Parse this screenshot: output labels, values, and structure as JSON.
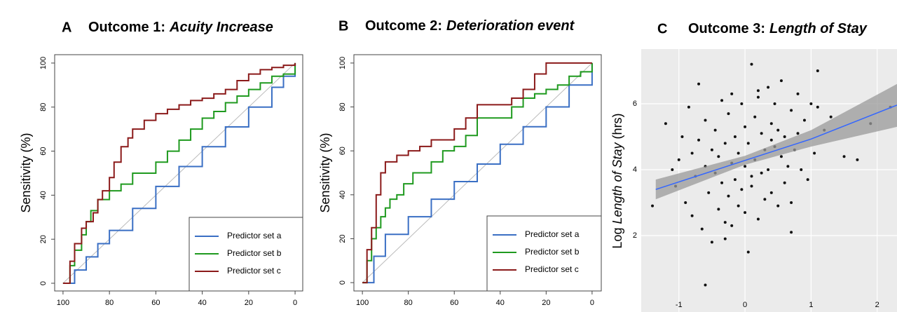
{
  "chart_data": [
    {
      "type": "line",
      "panel": "A",
      "title": "Outcome 1:",
      "title_italic": "Acuity Increase",
      "ylabel": "Sensitivity (%)",
      "xlim": [
        103.6,
        -3.3
      ],
      "ylim": [
        -3.5,
        103.8
      ],
      "xticks": [
        100,
        80,
        60,
        40,
        20,
        0
      ],
      "yticks": [
        0,
        20,
        40,
        60,
        80,
        100
      ],
      "step": true,
      "legend": "lower right",
      "series": [
        {
          "name": "Predictor set a",
          "color": "#3a6fc4",
          "x": [
            100,
            95,
            90,
            85,
            80,
            70,
            60,
            50,
            40,
            30,
            20,
            10,
            5,
            0
          ],
          "values": [
            0,
            6,
            12,
            18,
            24,
            34,
            44,
            53,
            62,
            71,
            80,
            89,
            94,
            100
          ]
        },
        {
          "name": "Predictor set b",
          "color": "#1f9a1f",
          "x": [
            100,
            97,
            95,
            92,
            90,
            88,
            85,
            80,
            75,
            70,
            65,
            60,
            55,
            50,
            45,
            40,
            35,
            30,
            25,
            20,
            15,
            10,
            5,
            0
          ],
          "values": [
            0,
            8,
            15,
            22,
            28,
            33,
            38,
            42,
            45,
            50,
            50,
            55,
            60,
            65,
            70,
            75,
            78,
            82,
            85,
            88,
            91,
            94,
            95,
            100
          ]
        },
        {
          "name": "Predictor set c",
          "color": "#8b1a1a",
          "x": [
            100,
            97,
            95,
            92,
            90,
            87,
            85,
            83,
            80,
            78,
            75,
            72,
            70,
            65,
            60,
            55,
            50,
            45,
            40,
            35,
            30,
            25,
            20,
            15,
            10,
            5,
            0
          ],
          "values": [
            0,
            10,
            18,
            25,
            28,
            32,
            38,
            42,
            48,
            55,
            62,
            66,
            70,
            74,
            77,
            79,
            81,
            83,
            84,
            86,
            88,
            92,
            95,
            97,
            98,
            99,
            100
          ]
        }
      ]
    },
    {
      "type": "line",
      "panel": "B",
      "title": "Outcome 2:",
      "title_italic": "Deterioration event",
      "ylabel": "Sensitivity (%)",
      "xlim": [
        103.7,
        -4.0
      ],
      "ylim": [
        -3.8,
        103.8
      ],
      "xticks": [
        100,
        80,
        60,
        40,
        20,
        0
      ],
      "yticks": [
        0,
        20,
        40,
        60,
        80,
        100
      ],
      "step": true,
      "legend": "lower right",
      "series": [
        {
          "name": "Predictor set a",
          "color": "#3a6fc4",
          "x": [
            100,
            95,
            90,
            80,
            70,
            60,
            50,
            40,
            30,
            20,
            10,
            0
          ],
          "values": [
            0,
            12,
            22,
            30,
            38,
            46,
            54,
            63,
            71,
            80,
            90,
            100
          ]
        },
        {
          "name": "Predictor set b",
          "color": "#1f9a1f",
          "x": [
            100,
            98,
            96,
            94,
            92,
            90,
            88,
            85,
            82,
            78,
            75,
            70,
            65,
            60,
            55,
            50,
            40,
            35,
            30,
            25,
            20,
            15,
            10,
            5,
            0
          ],
          "values": [
            0,
            10,
            20,
            25,
            30,
            34,
            38,
            40,
            45,
            50,
            50,
            55,
            60,
            62,
            67,
            75,
            75,
            80,
            84,
            86,
            88,
            90,
            94,
            96,
            100
          ]
        },
        {
          "name": "Predictor set c",
          "color": "#8b1a1a",
          "x": [
            100,
            98,
            96,
            94,
            92,
            90,
            85,
            80,
            75,
            70,
            65,
            60,
            55,
            50,
            45,
            40,
            35,
            30,
            25,
            20,
            15,
            10,
            5,
            0
          ],
          "values": [
            0,
            15,
            25,
            40,
            50,
            55,
            58,
            60,
            62,
            65,
            65,
            70,
            75,
            81,
            81,
            81,
            84,
            88,
            95,
            100,
            100,
            100,
            100,
            100
          ]
        }
      ]
    },
    {
      "type": "scatter",
      "panel": "C",
      "title": "Outcome 3:",
      "title_italic": "Length of Stay",
      "ylabel": [
        "Log",
        "Length of Stay",
        "(hrs)"
      ],
      "xlim": [
        -1.57,
        2.3
      ],
      "ylim": [
        -0.32,
        7.66
      ],
      "xticks": [
        -1,
        0,
        1,
        2
      ],
      "yticks": [
        2,
        4,
        6
      ],
      "grid": true,
      "series": [
        {
          "color": "#111111",
          "x": [
            -1.4,
            -1.2,
            -1.1,
            -1.05,
            -1,
            -0.95,
            -0.9,
            -0.85,
            -0.8,
            -0.8,
            -0.75,
            -0.7,
            -0.7,
            -0.65,
            -0.6,
            -0.6,
            -0.55,
            -0.5,
            -0.5,
            -0.45,
            -0.45,
            -0.4,
            -0.4,
            -0.35,
            -0.35,
            -0.3,
            -0.3,
            -0.25,
            -0.25,
            -0.2,
            -0.2,
            -0.15,
            -0.15,
            -0.1,
            -0.1,
            -0.05,
            -0.05,
            0,
            0,
            0,
            0.05,
            0.05,
            0.1,
            0.1,
            0.15,
            0.15,
            0.2,
            0.2,
            0.25,
            0.25,
            0.3,
            0.3,
            0.35,
            0.35,
            0.4,
            0.4,
            0.45,
            0.45,
            0.5,
            0.5,
            0.55,
            0.55,
            0.6,
            0.6,
            0.65,
            0.7,
            0.7,
            0.75,
            0.8,
            0.8,
            0.85,
            0.9,
            0.95,
            1,
            1.05,
            1.1,
            1.1,
            1.2,
            1.3,
            1.5,
            1.7,
            1.9,
            2.2,
            -0.6,
            -0.3,
            0.1,
            0.4,
            0.7,
            -0.2,
            0.2
          ],
          "values": [
            2.9,
            5.4,
            4.0,
            3.5,
            4.3,
            5.0,
            3.0,
            5.9,
            4.5,
            2.6,
            3.8,
            6.6,
            4.9,
            2.2,
            4.1,
            5.5,
            3.3,
            4.6,
            1.8,
            3.9,
            5.2,
            2.8,
            4.4,
            6.1,
            3.6,
            4.8,
            2.4,
            5.7,
            3.2,
            4.2,
            6.3,
            3.7,
            5.0,
            2.9,
            4.5,
            6.0,
            3.4,
            4.1,
            5.3,
            2.7,
            1.5,
            4.8,
            7.2,
            3.8,
            5.6,
            4.3,
            2.5,
            6.2,
            3.9,
            5.1,
            4.6,
            3.1,
            6.5,
            4.0,
            5.4,
            3.3,
            4.7,
            6.0,
            2.9,
            5.2,
            4.4,
            6.7,
            3.6,
            5.0,
            4.1,
            5.8,
            3.0,
            4.6,
            6.3,
            5.1,
            4.0,
            5.5,
            3.7,
            6.0,
            4.5,
            5.9,
            7.0,
            5.2,
            5.6,
            4.4,
            4.3,
            5.4,
            5.9,
            0.5,
            1.9,
            3.5,
            4.9,
            2.1,
            2.3,
            6.4
          ]
        }
      ],
      "fit": {
        "color": "#3366ff",
        "band_color": "#9a9a9a",
        "x": [
          -1.35,
          0,
          1,
          2.3
        ],
        "values": [
          3.4,
          4.28,
          4.93,
          5.96
        ],
        "lower": [
          3.1,
          4.15,
          4.7,
          5.3
        ],
        "upper": [
          3.7,
          4.42,
          5.2,
          6.6
        ]
      }
    }
  ]
}
